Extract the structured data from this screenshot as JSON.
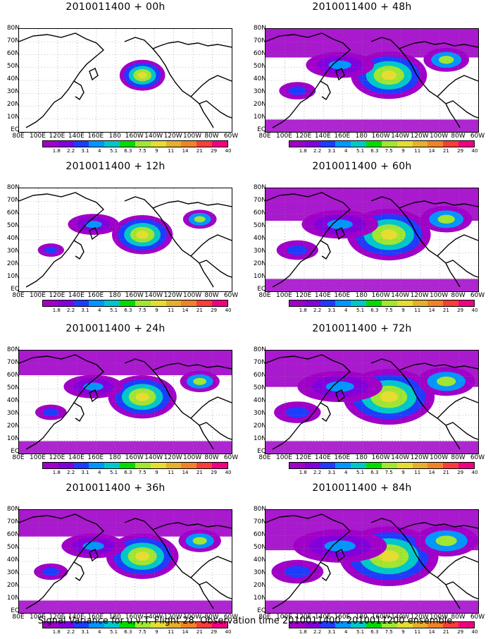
{
  "panels": [
    {
      "title": "2010011400 + 00h",
      "intensity": 0.15
    },
    {
      "title": "2010011400 + 48h",
      "intensity": 0.55
    },
    {
      "title": "2010011400 + 12h",
      "intensity": 0.35
    },
    {
      "title": "2010011400 + 60h",
      "intensity": 0.65
    },
    {
      "title": "2010011400 + 24h",
      "intensity": 0.45
    },
    {
      "title": "2010011400 + 72h",
      "intensity": 0.75
    },
    {
      "title": "2010011400 + 36h",
      "intensity": 0.5
    },
    {
      "title": "2010011400 + 84h",
      "intensity": 0.85
    }
  ],
  "lat_labels": [
    "80N",
    "70N",
    "60N",
    "50N",
    "40N",
    "30N",
    "20N",
    "10N",
    "EQ"
  ],
  "lon_labels": [
    "80E",
    "100E",
    "120E",
    "140E",
    "160E",
    "180",
    "160W",
    "140W",
    "120W",
    "100W",
    "80W",
    "60W"
  ],
  "colorbar": {
    "levels": [
      "1.8",
      "2.2",
      "3.1",
      "4",
      "5.1",
      "6.3",
      "7.5",
      "9",
      "11",
      "14",
      "21",
      "29",
      "40"
    ],
    "colors": [
      "#a000c8",
      "#8200dc",
      "#1e3cff",
      "#0096ff",
      "#00c8c8",
      "#00dc00",
      "#a0e632",
      "#e6dc32",
      "#e6af2d",
      "#f08228",
      "#fa3c3c",
      "#f00082"
    ]
  },
  "footer": "Signal Variance for u,v,T. Flight 28. Observation time 2010011400. 2010011200 ensemble."
}
